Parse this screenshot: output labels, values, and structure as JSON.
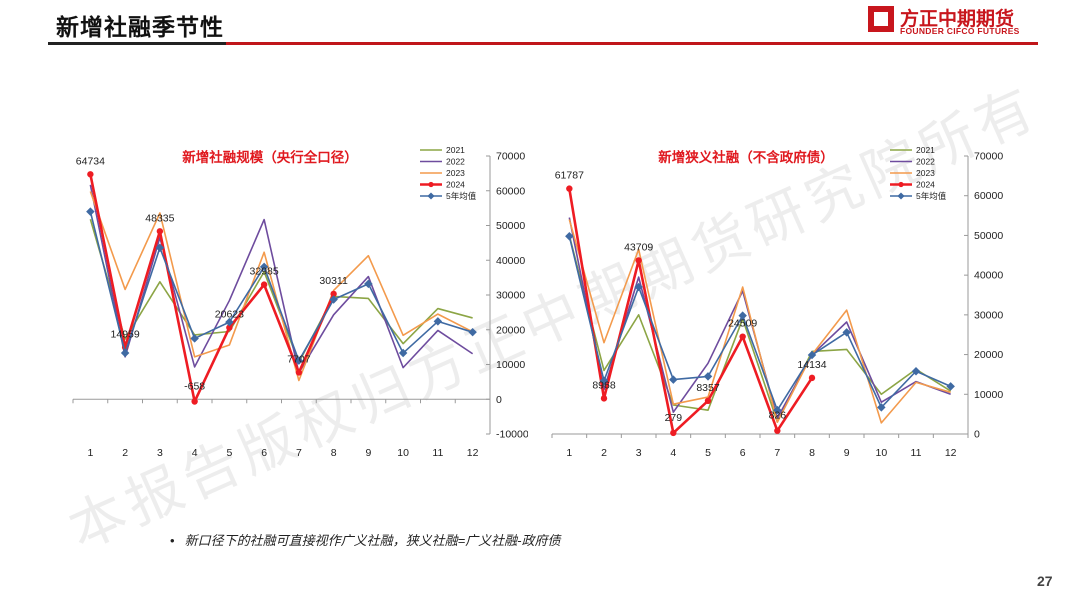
{
  "header": {
    "title": "新增社融季节性"
  },
  "logo": {
    "name_cn": "方正中期期货",
    "name_en": "FOUNDER CIFCO FUTURES"
  },
  "watermark": {
    "text": "本报告版权归方正中期期货研究院所有"
  },
  "note": {
    "bullet": "•",
    "text": "新口径下的社融可直接视作广义社融，狭义社融=广义社融-政府债"
  },
  "page_number": "27",
  "colors": {
    "y2021": "#8ca545",
    "y2022": "#6e4c9e",
    "y2023": "#f39a4c",
    "y2024": "#ee1c23",
    "avg5": "#3f6aa3",
    "title_red": "#e0191f"
  },
  "chart_data": [
    {
      "type": "line",
      "title": "新增社融规模（央行全口径）",
      "x": [
        "1",
        "2",
        "3",
        "4",
        "5",
        "6",
        "7",
        "8",
        "9",
        "10",
        "11",
        "12"
      ],
      "ylim": [
        -10000,
        70000
      ],
      "yticks": [
        -10000,
        0,
        10000,
        20000,
        30000,
        40000,
        50000,
        60000,
        70000
      ],
      "ytick_labels": [
        "-10000",
        "0",
        "10000",
        "20000",
        "30000",
        "40000",
        "50000",
        "60000",
        "70000"
      ],
      "grid": false,
      "legend": "top-right",
      "series": [
        {
          "name": "2021",
          "values": [
            51800,
            17300,
            33800,
            18500,
            19500,
            36700,
            10600,
            29600,
            29000,
            16000,
            26100,
            23400
          ]
        },
        {
          "name": "2022",
          "values": [
            61700,
            12200,
            46500,
            9300,
            28400,
            51700,
            7600,
            24300,
            35300,
            9100,
            19800,
            13100
          ]
        },
        {
          "name": "2023",
          "values": [
            59800,
            31600,
            53600,
            12200,
            15600,
            42300,
            5400,
            31300,
            41300,
            18400,
            24500,
            19400
          ]
        },
        {
          "name": "2024",
          "values": [
            64734,
            14959,
            48335,
            -658,
            20623,
            32985,
            7707,
            30311,
            null,
            null,
            null,
            null
          ]
        },
        {
          "name": "5年均值",
          "values": [
            54000,
            13300,
            43600,
            17500,
            22200,
            38100,
            11100,
            28700,
            33200,
            13300,
            22400,
            19300
          ]
        }
      ],
      "labels": [
        {
          "x": "1",
          "value": 64734,
          "text": "64734"
        },
        {
          "x": "2",
          "value": 14959,
          "text": "14959"
        },
        {
          "x": "3",
          "value": 48335,
          "text": "48335"
        },
        {
          "x": "4",
          "value": -658,
          "text": "-658"
        },
        {
          "x": "5",
          "value": 20623,
          "text": "20623"
        },
        {
          "x": "6",
          "value": 32985,
          "text": "32985"
        },
        {
          "x": "7",
          "value": 7707,
          "text": "7707"
        },
        {
          "x": "8",
          "value": 30311,
          "text": "30311"
        }
      ]
    },
    {
      "type": "line",
      "title": "新增狭义社融（不含政府债）",
      "x": [
        "1",
        "2",
        "3",
        "4",
        "5",
        "6",
        "7",
        "8",
        "9",
        "10",
        "11",
        "12"
      ],
      "ylim": [
        0,
        70000
      ],
      "yticks": [
        0,
        10000,
        20000,
        30000,
        40000,
        50000,
        60000,
        70000
      ],
      "ytick_labels": [
        "0",
        "10000",
        "20000",
        "30000",
        "40000",
        "50000",
        "60000",
        "70000"
      ],
      "grid": false,
      "legend": "top-right",
      "series": [
        {
          "name": "2021",
          "values": [
            50000,
            16000,
            30000,
            7300,
            6000,
            29000,
            3000,
            20800,
            21300,
            10000,
            16300,
            10800
          ]
        },
        {
          "name": "2022",
          "values": [
            54500,
            11200,
            39500,
            5500,
            17800,
            36000,
            4000,
            19900,
            28200,
            8000,
            13200,
            10000
          ]
        },
        {
          "name": "2023",
          "values": [
            54000,
            23000,
            46500,
            7500,
            9300,
            37000,
            3000,
            20000,
            31200,
            2800,
            13000,
            10500
          ]
        },
        {
          "name": "2024",
          "values": [
            61787,
            8968,
            43709,
            279,
            8357,
            24509,
            826,
            14134,
            null,
            null,
            null,
            null
          ]
        },
        {
          "name": "5年均值",
          "values": [
            49800,
            13400,
            37000,
            13700,
            14500,
            29800,
            6000,
            19900,
            25600,
            6700,
            15800,
            12000
          ]
        }
      ],
      "labels": [
        {
          "x": "1",
          "value": 61787,
          "text": "61787"
        },
        {
          "x": "2",
          "value": 8968,
          "text": "8968"
        },
        {
          "x": "3",
          "value": 43709,
          "text": "43709"
        },
        {
          "x": "4",
          "value": 279,
          "text": "279"
        },
        {
          "x": "5",
          "value": 8357,
          "text": "8357"
        },
        {
          "x": "6",
          "value": 24509,
          "text": "24509"
        },
        {
          "x": "7",
          "value": 826,
          "text": "826"
        },
        {
          "x": "8",
          "value": 14134,
          "text": "14134"
        }
      ]
    }
  ]
}
